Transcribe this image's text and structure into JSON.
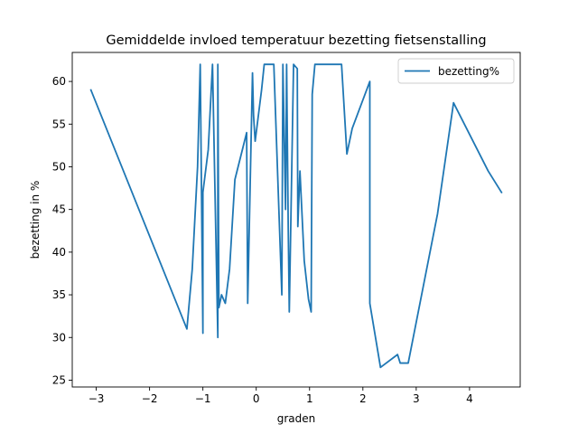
{
  "chart_data": {
    "type": "line",
    "title": "Gemiddelde invloed temperatuur bezetting fietsenstalling",
    "xlabel": "graden",
    "ylabel": "bezetting in %",
    "xlim": [
      -3.45,
      4.95
    ],
    "ylim": [
      24.2,
      63.4
    ],
    "xticks": [
      -3,
      -2,
      -1,
      0,
      1,
      2,
      3,
      4
    ],
    "yticks": [
      25,
      30,
      35,
      40,
      45,
      50,
      55,
      60
    ],
    "grid": false,
    "legend": {
      "position": "top-right"
    },
    "series": [
      {
        "name": "bezetting%",
        "color": "#1f77b4",
        "points": [
          [
            -3.1,
            59
          ],
          [
            -1.3,
            31
          ],
          [
            -1.2,
            38
          ],
          [
            -1.1,
            50
          ],
          [
            -1.05,
            62
          ],
          [
            -1.0,
            30.5
          ],
          [
            -1.0,
            47
          ],
          [
            -0.9,
            52
          ],
          [
            -0.82,
            62
          ],
          [
            -0.72,
            30
          ],
          [
            -0.72,
            62
          ],
          [
            -0.7,
            33.5
          ],
          [
            -0.65,
            35
          ],
          [
            -0.58,
            34
          ],
          [
            -0.5,
            38
          ],
          [
            -0.4,
            48.5
          ],
          [
            -0.18,
            54
          ],
          [
            -0.16,
            34
          ],
          [
            -0.07,
            61
          ],
          [
            -0.05,
            56
          ],
          [
            -0.02,
            53
          ],
          [
            0.1,
            59
          ],
          [
            0.15,
            62
          ],
          [
            0.33,
            62
          ],
          [
            0.48,
            35
          ],
          [
            0.5,
            62
          ],
          [
            0.55,
            45
          ],
          [
            0.57,
            62
          ],
          [
            0.6,
            43
          ],
          [
            0.62,
            33
          ],
          [
            0.7,
            62
          ],
          [
            0.77,
            61.5
          ],
          [
            0.78,
            43
          ],
          [
            0.82,
            49.5
          ],
          [
            0.9,
            39
          ],
          [
            0.98,
            34.5
          ],
          [
            1.03,
            33
          ],
          [
            1.05,
            58.5
          ],
          [
            1.1,
            62
          ],
          [
            1.6,
            62
          ],
          [
            1.7,
            51.5
          ],
          [
            1.8,
            54.5
          ],
          [
            2.13,
            60
          ],
          [
            2.13,
            34
          ],
          [
            2.33,
            26.5
          ],
          [
            2.65,
            28
          ],
          [
            2.7,
            27
          ],
          [
            2.85,
            27
          ],
          [
            3.4,
            44.5
          ],
          [
            3.7,
            57.5
          ],
          [
            4.35,
            49.5
          ],
          [
            4.6,
            47
          ]
        ]
      }
    ]
  }
}
